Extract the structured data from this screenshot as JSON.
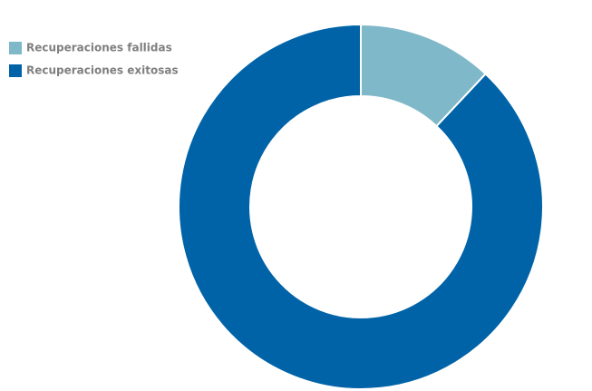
{
  "chart_data": {
    "type": "donut",
    "categories": [
      "Recuperaciones fallidas",
      "Recuperaciones exitosas"
    ],
    "values": [
      12,
      88
    ],
    "colors": [
      "#7fb8c8",
      "#0063a8"
    ],
    "legend": "top-left"
  }
}
